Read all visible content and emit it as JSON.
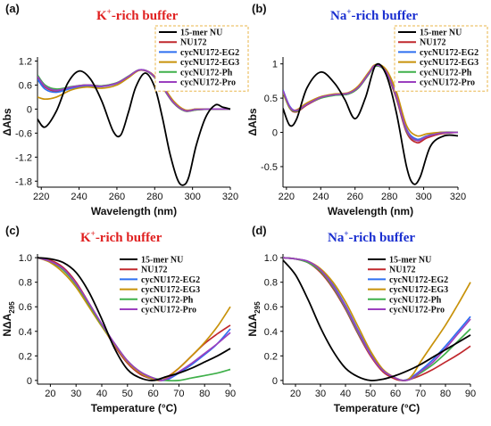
{
  "colors": {
    "15-mer NU": "#000000",
    "NU172": "#c0282d",
    "cycNU172-EG2": "#2f6ff0",
    "cycNU172-EG3": "#c8920a",
    "cycNU172-Ph": "#3fb04a",
    "cycNU172-Pro": "#9b3fbf",
    "k_title": "#e02020",
    "na_title": "#1a2fd0",
    "legend_border": "#e8b54a"
  },
  "chart_data": [
    {
      "panel": "(a)",
      "type": "line",
      "title": {
        "ion": "K",
        "charge": "+",
        "rest": "-rich buffer"
      },
      "xlabel": "Wavelength (nm)",
      "ylabel": "ΔAbs",
      "xlim": [
        218,
        320
      ],
      "ylim": [
        -1.95,
        1.3
      ],
      "xticks": [
        220,
        240,
        260,
        280,
        300,
        320
      ],
      "yticks": [
        1.2,
        0.6,
        0.0,
        -0.6,
        -1.2,
        -1.8
      ],
      "ytick_labels": [
        "1.2",
        "0.6",
        "0",
        "-0.6",
        "-1.2",
        "-1.8"
      ],
      "legend": "boxed",
      "series": [
        {
          "name": "15-mer NU",
          "x": [
            218,
            222,
            228,
            234,
            240,
            246,
            252,
            258,
            262,
            266,
            270,
            275,
            280,
            284,
            288,
            292,
            295,
            298,
            302,
            307,
            312,
            316,
            320
          ],
          "y": [
            -0.25,
            -0.45,
            -0.05,
            0.65,
            0.95,
            0.75,
            0.2,
            -0.55,
            -0.65,
            -0.1,
            0.55,
            0.9,
            0.55,
            -0.2,
            -1.1,
            -1.75,
            -1.9,
            -1.7,
            -0.9,
            -0.2,
            0.1,
            0.05,
            0.0
          ]
        },
        {
          "name": "NU172",
          "x": [
            218,
            222,
            228,
            236,
            244,
            252,
            260,
            266,
            272,
            278,
            284,
            290,
            296,
            302,
            310,
            320
          ],
          "y": [
            0.8,
            0.55,
            0.45,
            0.55,
            0.6,
            0.58,
            0.65,
            0.8,
            0.97,
            0.88,
            0.55,
            0.15,
            -0.05,
            -0.02,
            0.0,
            0.0
          ]
        },
        {
          "name": "cycNU172-EG2",
          "x": [
            218,
            222,
            228,
            236,
            244,
            252,
            260,
            266,
            272,
            278,
            284,
            290,
            296,
            302,
            310,
            320
          ],
          "y": [
            0.75,
            0.5,
            0.42,
            0.52,
            0.57,
            0.56,
            0.64,
            0.8,
            0.98,
            0.9,
            0.58,
            0.18,
            -0.03,
            0.0,
            0.0,
            0.0
          ]
        },
        {
          "name": "cycNU172-EG3",
          "x": [
            218,
            222,
            228,
            236,
            244,
            252,
            260,
            266,
            272,
            278,
            284,
            290,
            296,
            302,
            310,
            320
          ],
          "y": [
            0.3,
            0.25,
            0.3,
            0.48,
            0.55,
            0.52,
            0.6,
            0.78,
            0.97,
            0.9,
            0.6,
            0.2,
            -0.02,
            0.0,
            0.0,
            0.0
          ]
        },
        {
          "name": "cycNU172-Ph",
          "x": [
            218,
            222,
            228,
            236,
            244,
            252,
            260,
            266,
            272,
            278,
            284,
            290,
            296,
            302,
            310,
            320
          ],
          "y": [
            0.85,
            0.6,
            0.5,
            0.56,
            0.6,
            0.58,
            0.66,
            0.82,
            0.98,
            0.88,
            0.55,
            0.15,
            -0.05,
            -0.02,
            0.0,
            0.0
          ]
        },
        {
          "name": "cycNU172-Pro",
          "x": [
            218,
            222,
            228,
            236,
            244,
            252,
            260,
            266,
            272,
            278,
            284,
            290,
            296,
            302,
            310,
            320
          ],
          "y": [
            0.82,
            0.57,
            0.47,
            0.55,
            0.6,
            0.57,
            0.65,
            0.81,
            0.98,
            0.89,
            0.56,
            0.16,
            -0.04,
            -0.01,
            0.0,
            0.0
          ]
        }
      ]
    },
    {
      "panel": "(b)",
      "type": "line",
      "title": {
        "ion": "Na",
        "charge": "+",
        "rest": "-rich buffer"
      },
      "xlabel": "Wavelength (nm)",
      "ylabel": "ΔAbs",
      "xlim": [
        218,
        320
      ],
      "ylim": [
        -0.8,
        1.1
      ],
      "xticks": [
        220,
        240,
        260,
        280,
        300,
        320
      ],
      "yticks": [
        1.0,
        0.5,
        0.0,
        -0.5
      ],
      "ytick_labels": [
        "1",
        "0.5",
        "0",
        "-0.5"
      ],
      "legend": "boxed",
      "series": [
        {
          "name": "15-mer NU",
          "x": [
            218,
            222,
            226,
            232,
            240,
            248,
            254,
            260,
            266,
            272,
            278,
            284,
            290,
            294,
            298,
            304,
            312,
            320
          ],
          "y": [
            0.35,
            0.1,
            0.2,
            0.65,
            0.88,
            0.72,
            0.48,
            0.2,
            0.5,
            0.98,
            0.85,
            0.3,
            -0.5,
            -0.75,
            -0.65,
            -0.2,
            -0.05,
            -0.05
          ]
        },
        {
          "name": "NU172",
          "x": [
            218,
            222,
            226,
            232,
            240,
            248,
            256,
            262,
            268,
            272,
            278,
            284,
            290,
            296,
            302,
            310,
            320
          ],
          "y": [
            0.6,
            0.35,
            0.3,
            0.4,
            0.5,
            0.55,
            0.56,
            0.65,
            0.85,
            0.97,
            0.88,
            0.5,
            0.0,
            -0.15,
            -0.08,
            -0.02,
            0.0
          ]
        },
        {
          "name": "cycNU172-EG2",
          "x": [
            218,
            222,
            226,
            232,
            240,
            248,
            256,
            262,
            268,
            272,
            278,
            284,
            290,
            296,
            302,
            310,
            320
          ],
          "y": [
            0.62,
            0.38,
            0.32,
            0.42,
            0.52,
            0.55,
            0.56,
            0.66,
            0.86,
            0.98,
            0.9,
            0.55,
            0.05,
            -0.1,
            -0.05,
            0.0,
            0.0
          ]
        },
        {
          "name": "cycNU172-EG3",
          "x": [
            218,
            222,
            226,
            232,
            240,
            248,
            256,
            262,
            268,
            272,
            278,
            284,
            290,
            296,
            302,
            310,
            320
          ],
          "y": [
            0.58,
            0.35,
            0.33,
            0.43,
            0.52,
            0.56,
            0.58,
            0.68,
            0.88,
            0.99,
            0.92,
            0.6,
            0.1,
            -0.05,
            -0.02,
            0.0,
            0.0
          ]
        },
        {
          "name": "cycNU172-Ph",
          "x": [
            218,
            222,
            226,
            232,
            240,
            248,
            256,
            262,
            268,
            272,
            278,
            284,
            290,
            296,
            302,
            310,
            320
          ],
          "y": [
            0.6,
            0.36,
            0.31,
            0.41,
            0.5,
            0.54,
            0.56,
            0.65,
            0.85,
            0.97,
            0.88,
            0.52,
            0.02,
            -0.12,
            -0.06,
            -0.01,
            0.0
          ]
        },
        {
          "name": "cycNU172-Pro",
          "x": [
            218,
            222,
            226,
            232,
            240,
            248,
            256,
            262,
            268,
            272,
            278,
            284,
            290,
            296,
            302,
            310,
            320
          ],
          "y": [
            0.61,
            0.37,
            0.32,
            0.41,
            0.51,
            0.55,
            0.57,
            0.66,
            0.86,
            0.98,
            0.89,
            0.53,
            0.03,
            -0.12,
            -0.06,
            -0.01,
            0.0
          ]
        }
      ]
    },
    {
      "panel": "(c)",
      "type": "line",
      "title": {
        "ion": "K",
        "charge": "+",
        "rest": "-rich buffer"
      },
      "xlabel": "Temperature (°C)",
      "ylabel": "NΔA295",
      "xlim": [
        15,
        90
      ],
      "ylim": [
        -0.03,
        1.03
      ],
      "xticks": [
        20,
        30,
        40,
        50,
        60,
        70,
        80,
        90
      ],
      "yticks": [
        1.0,
        0.8,
        0.6,
        0.4,
        0.2,
        0.0
      ],
      "ytick_labels": [
        "1.0",
        "0.8",
        "0.6",
        "0.4",
        "0.2",
        "0"
      ],
      "legend": "plain",
      "series": [
        {
          "name": "15-mer NU",
          "x": [
            15,
            20,
            25,
            30,
            35,
            40,
            45,
            50,
            55,
            60,
            65,
            70,
            75,
            80,
            85,
            90
          ],
          "y": [
            1.0,
            0.99,
            0.96,
            0.88,
            0.72,
            0.5,
            0.26,
            0.09,
            0.02,
            0.0,
            0.03,
            0.06,
            0.1,
            0.15,
            0.2,
            0.26
          ]
        },
        {
          "name": "NU172",
          "x": [
            15,
            20,
            25,
            30,
            35,
            40,
            45,
            50,
            55,
            60,
            63,
            65,
            70,
            75,
            80,
            85,
            90
          ],
          "y": [
            1.0,
            0.98,
            0.92,
            0.8,
            0.63,
            0.45,
            0.28,
            0.14,
            0.05,
            0.01,
            0.0,
            0.02,
            0.1,
            0.2,
            0.3,
            0.38,
            0.45
          ]
        },
        {
          "name": "cycNU172-EG2",
          "x": [
            15,
            20,
            25,
            30,
            35,
            40,
            45,
            50,
            55,
            60,
            64,
            66,
            70,
            75,
            80,
            85,
            90
          ],
          "y": [
            1.0,
            0.97,
            0.9,
            0.78,
            0.62,
            0.45,
            0.29,
            0.15,
            0.06,
            0.01,
            0.0,
            0.01,
            0.06,
            0.13,
            0.21,
            0.3,
            0.42
          ]
        },
        {
          "name": "cycNU172-EG3",
          "x": [
            15,
            20,
            25,
            30,
            35,
            40,
            45,
            50,
            55,
            60,
            63,
            66,
            70,
            75,
            80,
            85,
            90
          ],
          "y": [
            1.0,
            0.96,
            0.88,
            0.76,
            0.6,
            0.44,
            0.29,
            0.15,
            0.06,
            0.01,
            0.0,
            0.03,
            0.1,
            0.2,
            0.31,
            0.44,
            0.6
          ]
        },
        {
          "name": "cycNU172-Ph",
          "x": [
            15,
            20,
            25,
            30,
            35,
            40,
            45,
            50,
            55,
            60,
            65,
            70,
            75,
            80,
            85,
            90
          ],
          "y": [
            1.0,
            0.97,
            0.9,
            0.78,
            0.62,
            0.45,
            0.3,
            0.16,
            0.07,
            0.02,
            0.0,
            0.0,
            0.02,
            0.04,
            0.06,
            0.09
          ]
        },
        {
          "name": "cycNU172-Pro",
          "x": [
            15,
            20,
            25,
            30,
            35,
            40,
            45,
            50,
            55,
            60,
            63,
            66,
            70,
            75,
            80,
            85,
            90
          ],
          "y": [
            1.0,
            0.97,
            0.91,
            0.79,
            0.63,
            0.46,
            0.3,
            0.16,
            0.07,
            0.02,
            0.0,
            0.02,
            0.07,
            0.14,
            0.22,
            0.3,
            0.39
          ]
        }
      ]
    },
    {
      "panel": "(d)",
      "type": "line",
      "title": {
        "ion": "Na",
        "charge": "+",
        "rest": "-rich buffer"
      },
      "xlabel": "Temperature (°C)",
      "ylabel": "NΔA295",
      "xlim": [
        15,
        90
      ],
      "ylim": [
        -0.03,
        1.03
      ],
      "xticks": [
        20,
        30,
        40,
        50,
        60,
        70,
        80,
        90
      ],
      "yticks": [
        1.0,
        0.8,
        0.6,
        0.4,
        0.2,
        0.0
      ],
      "ytick_labels": [
        "1.0",
        "0.8",
        "0.6",
        "0.4",
        "0.2",
        "0"
      ],
      "legend": "plain",
      "series": [
        {
          "name": "15-mer NU",
          "x": [
            15,
            20,
            25,
            30,
            35,
            40,
            45,
            50,
            55,
            60,
            65,
            70,
            75,
            80,
            85,
            90
          ],
          "y": [
            0.98,
            0.86,
            0.66,
            0.43,
            0.24,
            0.1,
            0.03,
            0.0,
            0.01,
            0.04,
            0.08,
            0.13,
            0.19,
            0.25,
            0.31,
            0.37
          ]
        },
        {
          "name": "NU172",
          "x": [
            15,
            20,
            25,
            30,
            35,
            40,
            45,
            50,
            55,
            60,
            63,
            66,
            70,
            75,
            80,
            85,
            90
          ],
          "y": [
            1.0,
            0.99,
            0.96,
            0.88,
            0.75,
            0.58,
            0.38,
            0.2,
            0.07,
            0.01,
            0.0,
            0.01,
            0.04,
            0.09,
            0.15,
            0.21,
            0.28
          ]
        },
        {
          "name": "cycNU172-EG2",
          "x": [
            15,
            20,
            25,
            30,
            35,
            40,
            45,
            50,
            55,
            60,
            63,
            66,
            70,
            75,
            80,
            85,
            90
          ],
          "y": [
            1.0,
            0.99,
            0.97,
            0.9,
            0.78,
            0.61,
            0.41,
            0.22,
            0.08,
            0.02,
            0.0,
            0.02,
            0.08,
            0.17,
            0.28,
            0.4,
            0.52
          ]
        },
        {
          "name": "cycNU172-EG3",
          "x": [
            15,
            20,
            25,
            30,
            35,
            40,
            45,
            50,
            55,
            60,
            64,
            67,
            70,
            75,
            80,
            85,
            90
          ],
          "y": [
            1.0,
            0.99,
            0.97,
            0.91,
            0.8,
            0.64,
            0.44,
            0.24,
            0.09,
            0.02,
            0.0,
            0.05,
            0.15,
            0.3,
            0.45,
            0.62,
            0.8
          ]
        },
        {
          "name": "cycNU172-Ph",
          "x": [
            15,
            20,
            25,
            30,
            35,
            40,
            45,
            50,
            55,
            60,
            63,
            66,
            70,
            75,
            80,
            85,
            90
          ],
          "y": [
            1.0,
            0.99,
            0.96,
            0.89,
            0.76,
            0.59,
            0.39,
            0.21,
            0.08,
            0.02,
            0.0,
            0.01,
            0.06,
            0.13,
            0.22,
            0.32,
            0.42
          ]
        },
        {
          "name": "cycNU172-Pro",
          "x": [
            15,
            20,
            25,
            30,
            35,
            40,
            45,
            50,
            55,
            60,
            63,
            66,
            70,
            75,
            80,
            85,
            90
          ],
          "y": [
            1.0,
            0.99,
            0.97,
            0.9,
            0.77,
            0.6,
            0.4,
            0.21,
            0.08,
            0.02,
            0.0,
            0.01,
            0.07,
            0.15,
            0.26,
            0.38,
            0.5
          ]
        }
      ]
    }
  ]
}
